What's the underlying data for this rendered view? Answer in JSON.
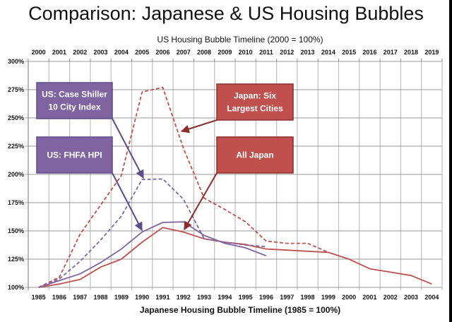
{
  "chart_data": {
    "type": "line",
    "title": "Comparison: Japanese & US Housing Bubbles",
    "x_top_label": "US Housing Bubble Timeline (2000 = 100%)",
    "x_bottom_label": "Japanese Housing Bubble Timeline (1985 = 100%)",
    "x_top_ticks": [
      "2000",
      "2001",
      "2002",
      "2003",
      "2004",
      "2005",
      "2006",
      "2007",
      "2008",
      "2009",
      "2010",
      "2011",
      "2012",
      "2013",
      "2014",
      "2015",
      "2016",
      "2017",
      "2018",
      "2019"
    ],
    "x_bottom_ticks": [
      "1985",
      "1986",
      "1987",
      "1988",
      "1989",
      "1990",
      "1991",
      "1992",
      "1993",
      "1994",
      "1995",
      "1996",
      "1997",
      "1998",
      "1999",
      "2000",
      "2001",
      "2002",
      "2003",
      "2004"
    ],
    "y_ticks": [
      "100%",
      "125%",
      "150%",
      "175%",
      "200%",
      "225%",
      "250%",
      "275%",
      "300%"
    ],
    "ylim": [
      100,
      300
    ],
    "grid": true,
    "series": [
      {
        "name": "Japan: Six Largest Cities",
        "color": "#c0504d",
        "style": "dashed",
        "values": [
          100,
          109,
          147,
          173,
          199,
          273,
          277,
          223,
          179,
          169,
          158,
          141,
          139,
          139,
          131
        ]
      },
      {
        "name": "All Japan",
        "color": "#c0504d",
        "style": "solid",
        "values": [
          100,
          103,
          107,
          118,
          125,
          140,
          153,
          149,
          143,
          140,
          138,
          134,
          133,
          132,
          131,
          125,
          116.5,
          113.5,
          110.5,
          103
        ]
      },
      {
        "name": "US: Case Shiller 10 City Index",
        "color": "#8064a2",
        "style": "dashed",
        "values": [
          100,
          107.5,
          123,
          142,
          163,
          195.5,
          196,
          178,
          143,
          140,
          137.5,
          136
        ]
      },
      {
        "name": "US: FHFA HPI",
        "color": "#8064a2",
        "style": "solid",
        "values": [
          100,
          106,
          112,
          122,
          134,
          149,
          157.5,
          158,
          146,
          139,
          135,
          128
        ]
      }
    ],
    "annotations": [
      {
        "label": [
          "US: Case Shiller",
          "10 City Index"
        ],
        "color": "#8064a2",
        "points_to_series": 2,
        "points_to_index": 5
      },
      {
        "label": [
          "US: FHFA HPI"
        ],
        "color": "#8064a2",
        "points_to_series": 3,
        "points_to_index": 5
      },
      {
        "label": [
          "Japan: Six",
          "Largest Cities"
        ],
        "color": "#c0504d",
        "points_to_series": 0,
        "points_to_index": 7
      },
      {
        "label": [
          "All Japan"
        ],
        "color": "#c0504d",
        "points_to_series": 1,
        "points_to_index": 7
      }
    ]
  }
}
